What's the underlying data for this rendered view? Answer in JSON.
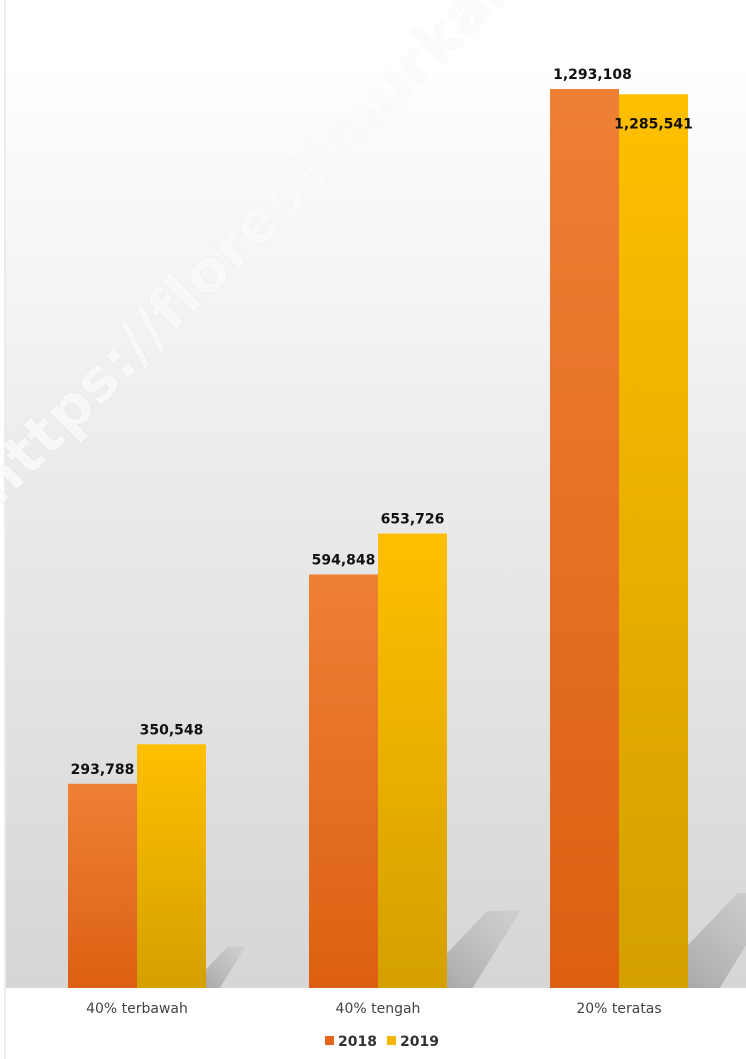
{
  "chart_data": {
    "type": "bar",
    "categories": [
      "40% terbawah",
      "40% tengah",
      "20% teratas"
    ],
    "series": [
      {
        "name": "2018",
        "values": [
          293788,
          594848,
          1293108
        ],
        "value_labels": [
          "293,788",
          "594,848",
          "1,293,108"
        ],
        "color": "#E5651E"
      },
      {
        "name": "2019",
        "values": [
          350548,
          653726,
          1285541
        ],
        "value_labels": [
          "350,548",
          "653,726",
          "1,285,541"
        ],
        "color": "#F5B400"
      }
    ],
    "title": "",
    "xlabel": "",
    "ylabel": "",
    "ylim": [
      0,
      1400000
    ],
    "grid": false,
    "legend": "bottom"
  },
  "watermark": "https://florestimurkab.bps.go.id"
}
